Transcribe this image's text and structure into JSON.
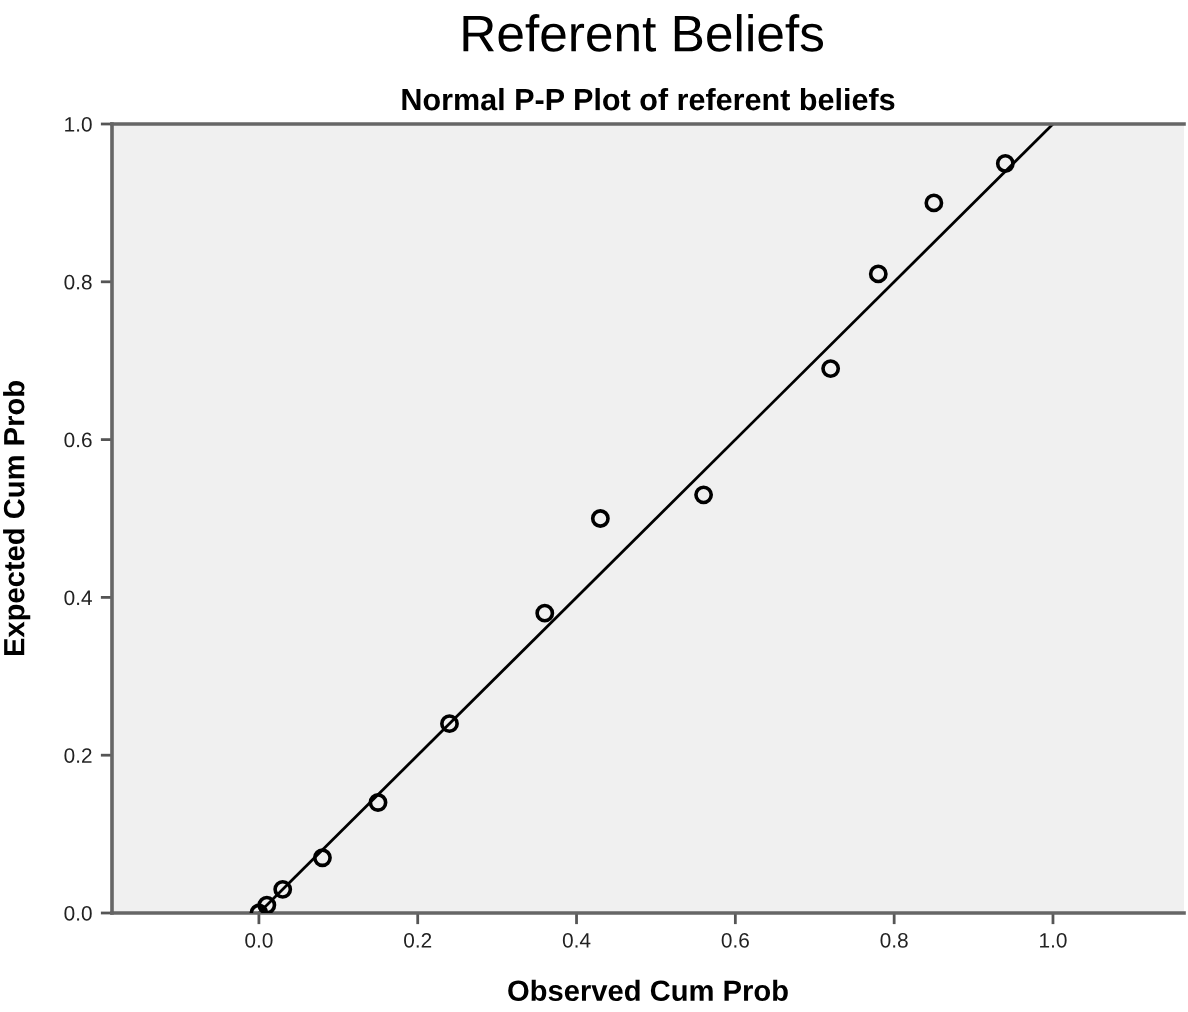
{
  "chart_data": {
    "type": "scatter",
    "title": "Referent Beliefs",
    "subtitle": "Normal P-P Plot of referent beliefs",
    "xlabel": "Observed Cum Prob",
    "ylabel": "Expected Cum Prob",
    "xlim": [
      -0.185,
      1.165
    ],
    "ylim": [
      0,
      1.0
    ],
    "xticks": [
      {
        "value": 0,
        "label": "0.0"
      },
      {
        "value": 0.2,
        "label": "0.2"
      },
      {
        "value": 0.4,
        "label": "0.4"
      },
      {
        "value": 0.6,
        "label": "0.6"
      },
      {
        "value": 0.8,
        "label": "0.8"
      },
      {
        "value": 1.0,
        "label": "1.0"
      }
    ],
    "yticks": [
      {
        "value": 0,
        "label": "0.0"
      },
      {
        "value": 0.2,
        "label": "0.2"
      },
      {
        "value": 0.4,
        "label": "0.4"
      },
      {
        "value": 0.6,
        "label": "0.6"
      },
      {
        "value": 0.8,
        "label": "0.8"
      },
      {
        "value": 1.0,
        "label": "1.0"
      }
    ],
    "grid": false,
    "legend": false,
    "marker": "circle",
    "series": [
      {
        "type": "line",
        "color": "#000000",
        "line_style": "solid",
        "marker": "none",
        "x": [
          0,
          1
        ],
        "values": [
          0,
          1
        ]
      },
      {
        "color": "#000000",
        "x": [
          0.0,
          0.01,
          0.03,
          0.08,
          0.15,
          0.24,
          0.36,
          0.43,
          0.56,
          0.72,
          0.78,
          0.85,
          0.94
        ],
        "values": [
          0.0,
          0.01,
          0.03,
          0.07,
          0.14,
          0.24,
          0.38,
          0.5,
          0.53,
          0.69,
          0.81,
          0.9,
          0.95
        ]
      }
    ]
  }
}
